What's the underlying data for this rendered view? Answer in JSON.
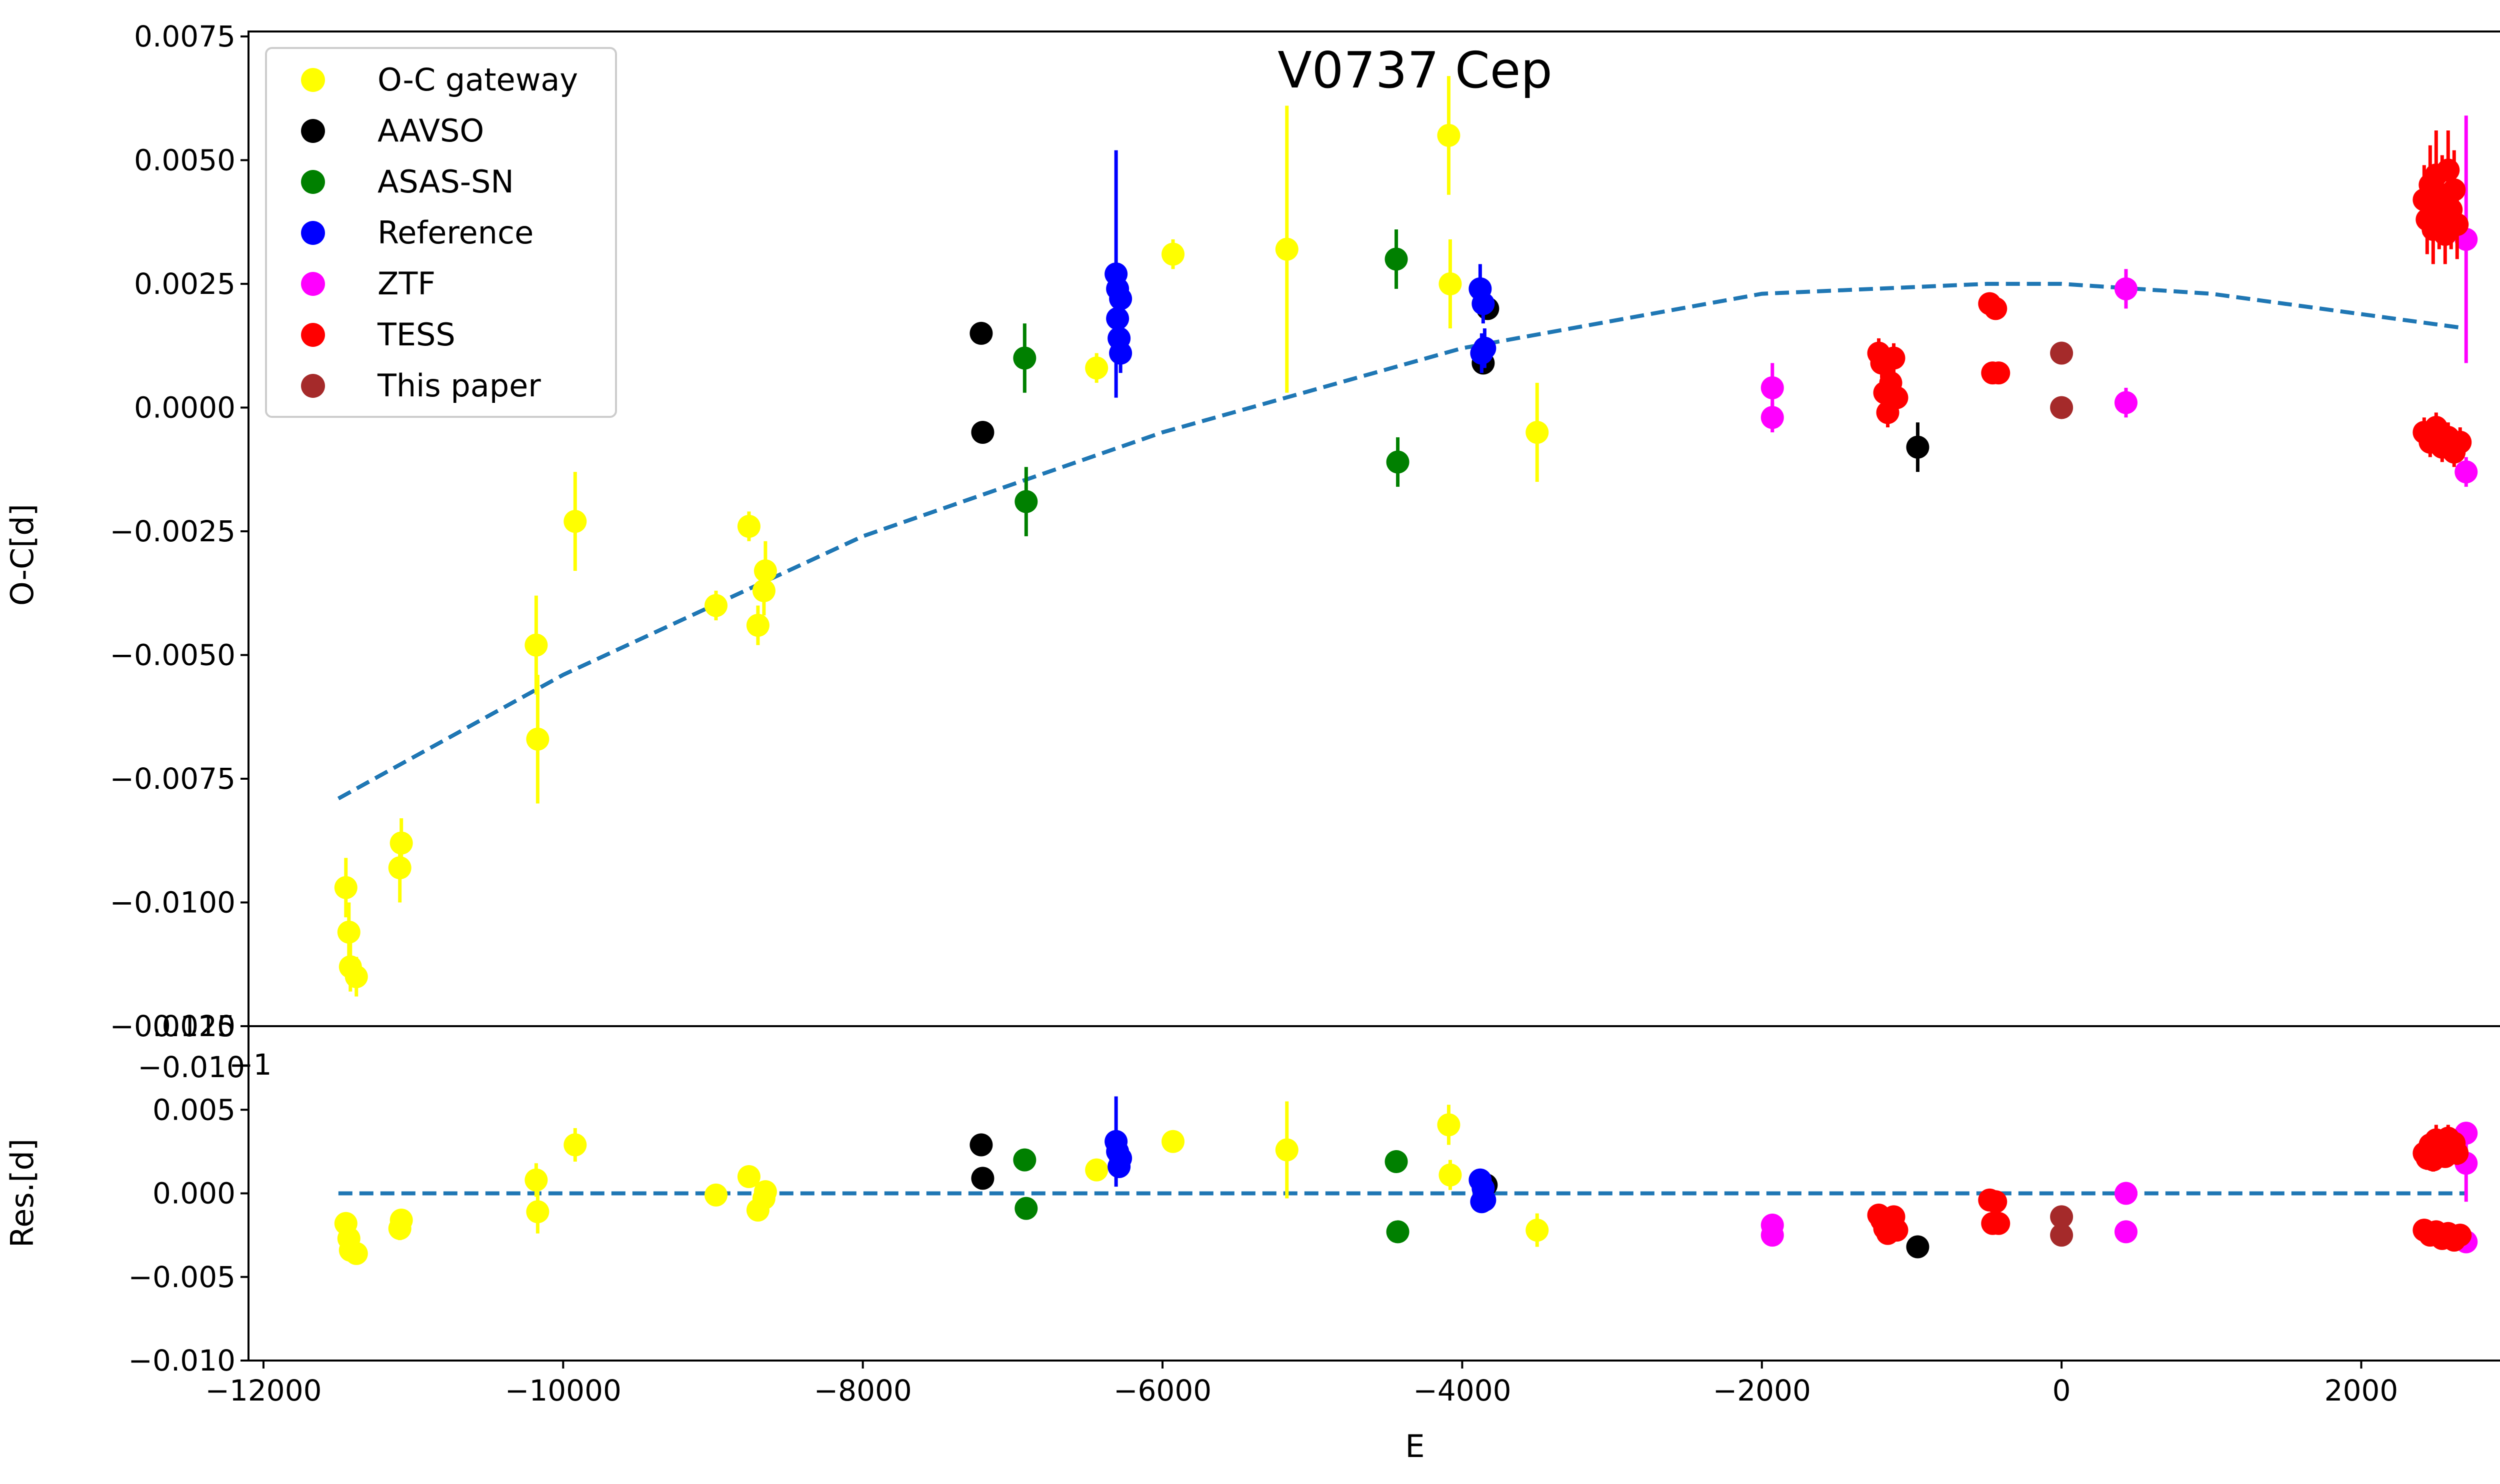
{
  "chart_data": {
    "type": "scatter",
    "title": "V0737 Cep",
    "colors": {
      "O-C gateway": "#ffff00",
      "AAVSO": "#000000",
      "ASAS-SN": "#008000",
      "Reference": "#0000ff",
      "ZTF": "#ff00ff",
      "TESS": "#ff0000",
      "This paper": "#a52a2a",
      "fit": "#1f77b4"
    },
    "legend": {
      "placement": "upper-left",
      "entries": [
        "O-C gateway",
        "AAVSO",
        "ASAS-SN",
        "Reference",
        "ZTF",
        "TESS",
        "This paper"
      ]
    },
    "xlabel": "E",
    "xlim": [
      -12100,
      3500
    ],
    "xticks": [
      -12000,
      -10000,
      -8000,
      -6000,
      -4000,
      -2000,
      0,
      2000
    ],
    "xtick_labels": [
      "−12000",
      "−10000",
      "−8000",
      "−6000",
      "−4000",
      "−2000",
      "0",
      "2000"
    ],
    "top_panel": {
      "ylabel": "O-C[d]",
      "ylim": [
        -0.0125,
        0.0076
      ],
      "yticks": [
        0.0075,
        0.005,
        0.0025,
        0.0,
        -0.0025,
        -0.005,
        -0.0075,
        -0.01,
        -0.0125
      ],
      "ytick_labels": [
        "0.0075",
        "0.0050",
        "0.0025",
        "0.0000",
        "−0.0025",
        "−0.0050",
        "−0.0075",
        "−0.0100",
        "−0.0125"
      ],
      "overlap_artifacts": [
        "−0.010",
        "−1"
      ],
      "fit": {
        "label": "quadratic fit (dashed)",
        "x": [
          -11500,
          -10000,
          -8000,
          -6000,
          -4000,
          -2000,
          -500,
          0,
          1000,
          2700
        ],
        "y": [
          -0.0079,
          -0.0054,
          -0.0026,
          -0.0005,
          0.0012,
          0.0023,
          0.0025,
          0.0025,
          0.0023,
          0.0016
        ]
      },
      "series": [
        {
          "name": "O-C gateway",
          "points": [
            [
              -11450,
              -0.0097,
              0.0006
            ],
            [
              -11430,
              -0.0106,
              0.0006
            ],
            [
              -11420,
              -0.0113,
              0.0005
            ],
            [
              -11380,
              -0.0115,
              0.0004
            ],
            [
              -11090,
              -0.0093,
              0.0007
            ],
            [
              -11080,
              -0.0088,
              0.0005
            ],
            [
              -10180,
              -0.0048,
              0.001
            ],
            [
              -10170,
              -0.0067,
              0.0013
            ],
            [
              -9920,
              -0.0023,
              0.001
            ],
            [
              -8980,
              -0.004,
              0.0003
            ],
            [
              -8760,
              -0.0024,
              0.0003
            ],
            [
              -8700,
              -0.0044,
              0.0004
            ],
            [
              -8660,
              -0.0037,
              0.0005
            ],
            [
              -8650,
              -0.0033,
              0.0006
            ],
            [
              -6440,
              0.0008,
              0.0003
            ],
            [
              -5930,
              0.0031,
              0.0003
            ],
            [
              -5170,
              0.0032,
              0.0029
            ],
            [
              -4090,
              0.0055,
              0.0012
            ],
            [
              -4080,
              0.0025,
              0.0009
            ],
            [
              -3500,
              -0.0005,
              0.001
            ]
          ]
        },
        {
          "name": "AAVSO",
          "points": [
            [
              -7210,
              0.0015,
              0.0002
            ],
            [
              -7200,
              -0.0005,
              0.0002
            ],
            [
              -3860,
              0.0009,
              0.0002
            ],
            [
              -3830,
              0.002,
              0.0002
            ],
            [
              -960,
              -0.0008,
              0.0005
            ]
          ]
        },
        {
          "name": "ASAS-SN",
          "points": [
            [
              -6920,
              0.001,
              0.0007
            ],
            [
              -6910,
              -0.0019,
              0.0007
            ],
            [
              -4440,
              0.003,
              0.0006
            ],
            [
              -4430,
              -0.0011,
              0.0005
            ]
          ]
        },
        {
          "name": "Reference",
          "points": [
            [
              -6310,
              0.0027,
              0.0025
            ],
            [
              -6300,
              0.0024,
              0.0004
            ],
            [
              -6300,
              0.0018,
              0.0004
            ],
            [
              -6290,
              0.0014,
              0.0004
            ],
            [
              -6280,
              0.0011,
              0.0004
            ],
            [
              -6280,
              0.0022,
              0.0004
            ],
            [
              -3880,
              0.0024,
              0.0005
            ],
            [
              -3870,
              0.0011,
              0.0004
            ],
            [
              -3860,
              0.0021,
              0.0004
            ],
            [
              -3850,
              0.0012,
              0.0004
            ]
          ]
        },
        {
          "name": "ZTF",
          "points": [
            [
              -1930,
              0.0004,
              0.0005
            ],
            [
              -1930,
              -0.0002,
              0.0003
            ],
            [
              430,
              0.0024,
              0.0004
            ],
            [
              430,
              0.0001,
              0.0003
            ],
            [
              2700,
              0.0034,
              0.0025
            ],
            [
              2700,
              -0.0013,
              0.0003
            ]
          ]
        },
        {
          "name": "TESS",
          "points": [
            [
              -1220,
              0.0011,
              0.0003
            ],
            [
              -1200,
              0.0009,
              0.0003
            ],
            [
              -1180,
              0.0003,
              0.0003
            ],
            [
              -1160,
              -0.0001,
              0.0003
            ],
            [
              -1140,
              0.0005,
              0.0003
            ],
            [
              -1120,
              0.001,
              0.0003
            ],
            [
              -1100,
              0.0002,
              0.0003
            ],
            [
              -480,
              0.0021,
              0.0002
            ],
            [
              -460,
              0.0007,
              0.0002
            ],
            [
              -440,
              0.002,
              0.0002
            ],
            [
              -420,
              0.0007,
              0.0002
            ],
            [
              2420,
              0.0042,
              0.0007
            ],
            [
              2440,
              0.0038,
              0.0007
            ],
            [
              2460,
              0.0045,
              0.0008
            ],
            [
              2480,
              0.0036,
              0.0007
            ],
            [
              2500,
              0.0047,
              0.0009
            ],
            [
              2520,
              0.0039,
              0.0007
            ],
            [
              2540,
              0.0043,
              0.0008
            ],
            [
              2560,
              0.0035,
              0.0006
            ],
            [
              2580,
              0.0048,
              0.0008
            ],
            [
              2600,
              0.004,
              0.0008
            ],
            [
              2620,
              0.0044,
              0.0008
            ],
            [
              2640,
              0.0037,
              0.0007
            ],
            [
              2420,
              -0.0005,
              0.0003
            ],
            [
              2460,
              -0.0007,
              0.0003
            ],
            [
              2500,
              -0.0004,
              0.0003
            ],
            [
              2540,
              -0.0008,
              0.0003
            ],
            [
              2580,
              -0.0006,
              0.0003
            ],
            [
              2620,
              -0.0009,
              0.0003
            ],
            [
              2660,
              -0.0007,
              0.0003
            ]
          ]
        },
        {
          "name": "This paper",
          "points": [
            [
              0,
              0.0011,
              0.0001
            ],
            [
              0,
              0.0,
              0.0001
            ]
          ]
        }
      ]
    },
    "bottom_panel": {
      "ylabel": "Res.[d]",
      "ylim": [
        -0.01,
        0.01
      ],
      "yticks": [
        0.01,
        0.005,
        0.0,
        -0.005,
        -0.01
      ],
      "ytick_labels": [
        "0.010",
        "0.005",
        "0.000",
        "−0.005",
        "−0.010"
      ],
      "zero_line": {
        "x": [
          -11500,
          2700
        ],
        "y": [
          0,
          0
        ]
      },
      "series": [
        {
          "name": "O-C gateway",
          "points": [
            [
              -11450,
              -0.0018,
              0.0006
            ],
            [
              -11430,
              -0.0027,
              0.0006
            ],
            [
              -11420,
              -0.0034,
              0.0005
            ],
            [
              -11380,
              -0.0036,
              0.0004
            ],
            [
              -11090,
              -0.0021,
              0.0007
            ],
            [
              -11080,
              -0.0016,
              0.0005
            ],
            [
              -10180,
              0.0008,
              0.001
            ],
            [
              -10170,
              -0.0011,
              0.0013
            ],
            [
              -9920,
              0.0029,
              0.001
            ],
            [
              -8980,
              -0.0001,
              0.0003
            ],
            [
              -8760,
              0.001,
              0.0003
            ],
            [
              -8700,
              -0.001,
              0.0004
            ],
            [
              -8660,
              -0.0003,
              0.0005
            ],
            [
              -8650,
              0.0001,
              0.0006
            ],
            [
              -6440,
              0.0014,
              0.0003
            ],
            [
              -5930,
              0.0031,
              0.0003
            ],
            [
              -5170,
              0.0026,
              0.0029
            ],
            [
              -4090,
              0.0041,
              0.0012
            ],
            [
              -4080,
              0.0011,
              0.0009
            ],
            [
              -3500,
              -0.0022,
              0.001
            ]
          ]
        },
        {
          "name": "AAVSO",
          "points": [
            [
              -7210,
              0.0029,
              0.0002
            ],
            [
              -7200,
              0.0009,
              0.0002
            ],
            [
              -3840,
              0.0005,
              0.0002
            ],
            [
              -960,
              -0.0032,
              0.0005
            ]
          ]
        },
        {
          "name": "ASAS-SN",
          "points": [
            [
              -6920,
              0.002,
              0.0004
            ],
            [
              -6910,
              -0.0009,
              0.0004
            ],
            [
              -4440,
              0.0019,
              0.0004
            ],
            [
              -4430,
              -0.0023,
              0.0004
            ]
          ]
        },
        {
          "name": "Reference",
          "points": [
            [
              -6310,
              0.0031,
              0.0027
            ],
            [
              -6300,
              0.0025,
              0.0004
            ],
            [
              -6290,
              0.0016,
              0.0004
            ],
            [
              -6280,
              0.0021,
              0.0004
            ],
            [
              -3880,
              0.0008,
              0.0005
            ],
            [
              -3870,
              -0.0005,
              0.0004
            ],
            [
              -3860,
              0.0003,
              0.0004
            ],
            [
              -3850,
              -0.0004,
              0.0004
            ]
          ]
        },
        {
          "name": "ZTF",
          "points": [
            [
              -1930,
              -0.0019,
              0.0004
            ],
            [
              -1930,
              -0.0025,
              0.0003
            ],
            [
              430,
              0.0,
              0.0004
            ],
            [
              430,
              -0.0023,
              0.0003
            ],
            [
              2700,
              0.0036,
              0.0006
            ],
            [
              2700,
              0.0018,
              0.0023
            ],
            [
              2700,
              -0.0029,
              0.0003
            ]
          ]
        },
        {
          "name": "TESS",
          "points": [
            [
              -1220,
              -0.0013,
              0.0003
            ],
            [
              -1200,
              -0.0016,
              0.0003
            ],
            [
              -1180,
              -0.0021,
              0.0003
            ],
            [
              -1160,
              -0.0024,
              0.0003
            ],
            [
              -1140,
              -0.0018,
              0.0003
            ],
            [
              -1120,
              -0.0014,
              0.0003
            ],
            [
              -1100,
              -0.0022,
              0.0003
            ],
            [
              -480,
              -0.0004,
              0.0002
            ],
            [
              -460,
              -0.0018,
              0.0002
            ],
            [
              -440,
              -0.0005,
              0.0002
            ],
            [
              -420,
              -0.0018,
              0.0002
            ],
            [
              2420,
              0.0024,
              0.0007
            ],
            [
              2440,
              0.0021,
              0.0007
            ],
            [
              2460,
              0.0029,
              0.0008
            ],
            [
              2480,
              0.002,
              0.0007
            ],
            [
              2500,
              0.0032,
              0.0009
            ],
            [
              2520,
              0.0023,
              0.0007
            ],
            [
              2540,
              0.0027,
              0.0008
            ],
            [
              2560,
              0.0022,
              0.0006
            ],
            [
              2580,
              0.0033,
              0.0008
            ],
            [
              2600,
              0.0025,
              0.0008
            ],
            [
              2620,
              0.003,
              0.0008
            ],
            [
              2640,
              0.0024,
              0.0007
            ],
            [
              2420,
              -0.0022,
              0.0003
            ],
            [
              2460,
              -0.0025,
              0.0003
            ],
            [
              2500,
              -0.0023,
              0.0003
            ],
            [
              2540,
              -0.0027,
              0.0003
            ],
            [
              2580,
              -0.0024,
              0.0003
            ],
            [
              2620,
              -0.0028,
              0.0003
            ],
            [
              2660,
              -0.0025,
              0.0003
            ]
          ]
        },
        {
          "name": "This paper",
          "points": [
            [
              0,
              -0.0014,
              0.0001
            ],
            [
              0,
              -0.0025,
              0.0001
            ]
          ]
        }
      ]
    }
  }
}
